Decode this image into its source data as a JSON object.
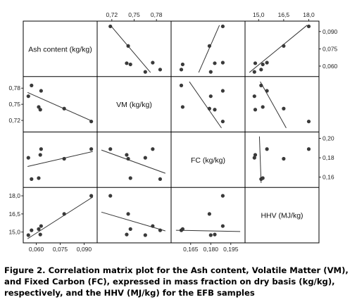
{
  "caption": "Figure 2. Correlation matrix plot for the Ash content, Volatile Matter (VM), and Fixed Carbon (FC), expressed in mass fraction on dry basis (kg/kg), respectively, and the HHV (MJ/kg) for the EFB samples",
  "chart_data": {
    "type": "scatter",
    "subtype": "scatterplot-matrix",
    "grid": false,
    "variables": [
      {
        "key": "ash",
        "label": "Ash content (kg/kg)",
        "range": [
          0.054,
          0.096
        ],
        "ticks": [
          "0,060",
          "0,075",
          "0,090"
        ],
        "tick_values": [
          0.06,
          0.075,
          0.09
        ]
      },
      {
        "key": "vm",
        "label": "VM (kg/kg)",
        "range": [
          0.705,
          0.795
        ],
        "ticks": [
          "0,72",
          "0,75",
          "0,78"
        ],
        "tick_values": [
          0.72,
          0.75,
          0.78
        ]
      },
      {
        "key": "fc",
        "label": "FC (kg/kg)",
        "range": [
          0.153,
          0.203
        ],
        "ticks": [
          "0,165",
          "0,180",
          "0,195"
        ],
        "tick_values": [
          0.165,
          0.18,
          0.195
        ],
        "side_ticks": [
          "0,16",
          "0,18",
          "0,20"
        ],
        "side_tick_values": [
          0.16,
          0.18,
          0.2
        ]
      },
      {
        "key": "hhv",
        "label": "HHV (MJ/kg)",
        "range": [
          14.4,
          18.4
        ],
        "ticks": [
          "15,0",
          "16,5",
          "18,0"
        ],
        "tick_values": [
          15.0,
          16.5,
          18.0
        ]
      }
    ],
    "samples": [
      {
        "ash": 0.055,
        "vm": 0.765,
        "fc": 0.18,
        "hhv": 14.75
      },
      {
        "ash": 0.057,
        "vm": 0.785,
        "fc": 0.158,
        "hhv": 15.15
      },
      {
        "ash": 0.0615,
        "vm": 0.745,
        "fc": 0.159,
        "hhv": 15.25
      },
      {
        "ash": 0.0625,
        "vm": 0.74,
        "fc": 0.183,
        "hhv": 14.8
      },
      {
        "ash": 0.063,
        "vm": 0.775,
        "fc": 0.189,
        "hhv": 15.5
      },
      {
        "ash": 0.0775,
        "vm": 0.742,
        "fc": 0.179,
        "hhv": 16.5
      },
      {
        "ash": 0.0945,
        "vm": 0.718,
        "fc": 0.189,
        "hhv": 18.0
      }
    ],
    "fit_lines": {
      "ash|vm": {
        "x": [
          0.0545,
          0.0955
        ],
        "y": [
          0.772,
          0.718
        ]
      },
      "ash|fc": {
        "x": [
          0.0545,
          0.0955
        ],
        "y": [
          0.171,
          0.1865
        ]
      },
      "ash|hhv": {
        "x": [
          0.0545,
          0.0955
        ],
        "y": [
          14.45,
          17.9
        ]
      },
      "vm|fc": {
        "x": [
          0.706,
          0.792
        ],
        "y": [
          0.188,
          0.164
        ]
      },
      "vm|hhv": {
        "x": [
          0.706,
          0.792
        ],
        "y": [
          16.65,
          15.1
        ]
      },
      "fc|hhv": {
        "x": [
          0.154,
          0.202
        ],
        "y": [
          15.15,
          15.05
        ]
      }
    }
  }
}
